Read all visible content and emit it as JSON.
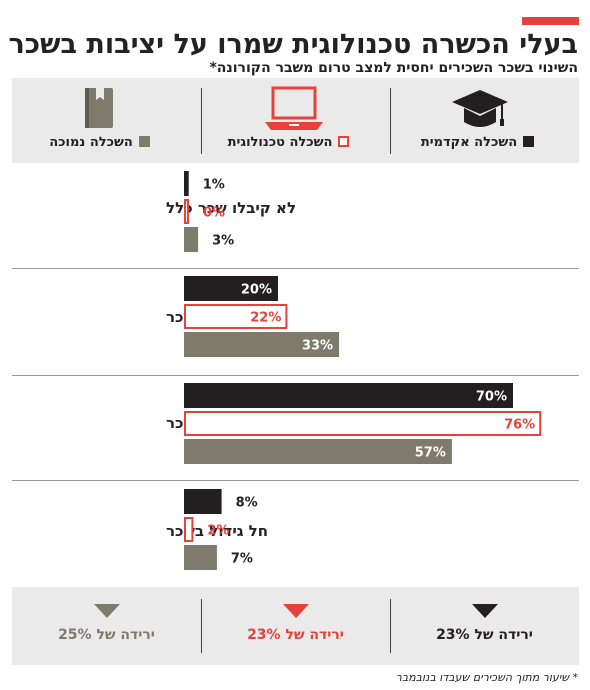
{
  "header": {
    "title": "בעלי הכשרה טכנולוגית שמרו על יציבות בשכר",
    "subtitle": "השינוי בשכר השכירים יחסית למצב טרום משבר הקורונה*"
  },
  "colors": {
    "accent": "#e8413a",
    "academic": "#231f20",
    "technological": "#e8413a",
    "low": "#7e7b6d"
  },
  "legend": [
    {
      "label": "השכלה אקדמית",
      "icon": "graduation-cap-icon",
      "color": "#231f20",
      "style": "filled"
    },
    {
      "label": "השכלה טכנולוגית",
      "icon": "laptop-icon",
      "color": "#e8413a",
      "style": "outline"
    },
    {
      "label": "השכלה נמוכה",
      "icon": "book-icon",
      "color": "#7e7b6d",
      "style": "filled"
    }
  ],
  "chart_data": {
    "type": "bar",
    "orientation": "horizontal",
    "categories": [
      "לא קיבלו שכר כלל",
      "חלה ירידה בשכר",
      "לא חל שינוי בשכר",
      "חל גידול בשכר"
    ],
    "series": [
      {
        "name": "השכלה אקדמית",
        "values": [
          1,
          20,
          70,
          8
        ],
        "labels": [
          "1%",
          "20%",
          "70%",
          "8%"
        ]
      },
      {
        "name": "השכלה טכנולוגית",
        "values": [
          0,
          22,
          76,
          2
        ],
        "labels": [
          "0%",
          "22%",
          "76%",
          "2%"
        ]
      },
      {
        "name": "השכלה נמוכה",
        "values": [
          3,
          33,
          57,
          7
        ],
        "labels": [
          "3%",
          "33%",
          "57%",
          "7%"
        ]
      }
    ],
    "xlim": [
      0,
      100
    ],
    "grid": false,
    "legend_position": "top"
  },
  "footer": [
    {
      "label": "ירידה של 23%",
      "color": "#231f20"
    },
    {
      "label": "ירידה של 23%",
      "color": "#e8413a"
    },
    {
      "label": "ירידה של 25%",
      "color": "#7e7b6d"
    }
  ],
  "footnote": "* שיעור מתוך השכירים שעבדו בנובמבר"
}
